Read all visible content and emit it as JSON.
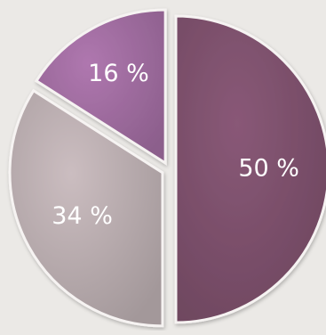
{
  "chart_data": {
    "type": "pie",
    "slices": [
      {
        "label": "50 %",
        "value": 50,
        "color": "#7a4f6a"
      },
      {
        "label": "34 %",
        "value": 34,
        "color": "#b5a9ab"
      },
      {
        "label": "16 %",
        "value": 16,
        "color": "#9c6a9c"
      }
    ],
    "start": "top",
    "direction": "clockwise",
    "exploded": true,
    "style": "3d-shaded"
  }
}
